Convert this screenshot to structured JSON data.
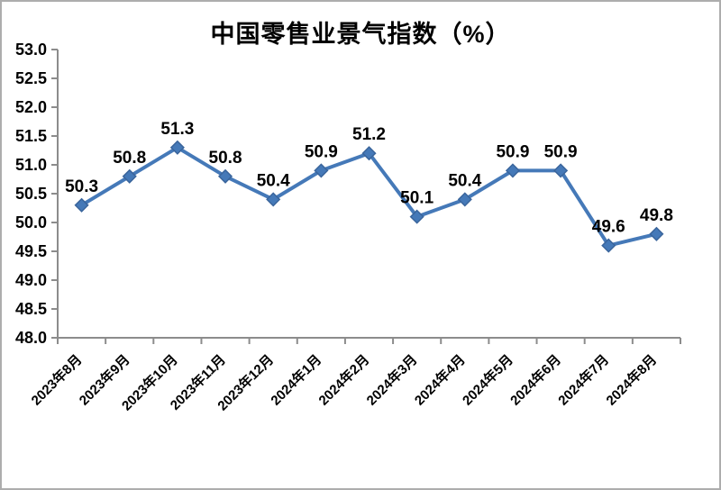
{
  "title": "中国零售业景气指数（%）",
  "chart_data": {
    "type": "line",
    "title": "中国零售业景气指数（%）",
    "categories": [
      "2023年8月",
      "2023年9月",
      "2023年10月",
      "2023年11月",
      "2023年12月",
      "2024年1月",
      "2024年2月",
      "2024年3月",
      "2024年4月",
      "2024年5月",
      "2024年6月",
      "2024年7月",
      "2024年8月"
    ],
    "values": [
      50.3,
      50.8,
      51.3,
      50.8,
      50.4,
      50.9,
      51.2,
      50.1,
      50.4,
      50.9,
      50.9,
      49.6,
      49.8
    ],
    "data_labels": [
      "50.3",
      "50.8",
      "51.3",
      "50.8",
      "50.4",
      "50.9",
      "51.2",
      "50.1",
      "50.4",
      "50.9",
      "50.9",
      "49.6",
      "49.8"
    ],
    "ylim": [
      48.0,
      53.0
    ],
    "ytick_labels": [
      "53.0",
      "52.5",
      "52.0",
      "51.5",
      "51.0",
      "50.5",
      "50.0",
      "49.5",
      "49.0",
      "48.5",
      "48.0"
    ],
    "xlabel": "",
    "ylabel": "",
    "grid": false,
    "legend_position": "none",
    "marker": "diamond",
    "colors": {
      "series_line": "#4579b8",
      "marker_fill": "#4579b8",
      "marker_stroke": "#3a659c",
      "axis": "#8c8c8c",
      "tick_text": "#000000",
      "data_label_text": "#000000",
      "frame_border": "#adadad",
      "background": "#ffffff"
    }
  }
}
